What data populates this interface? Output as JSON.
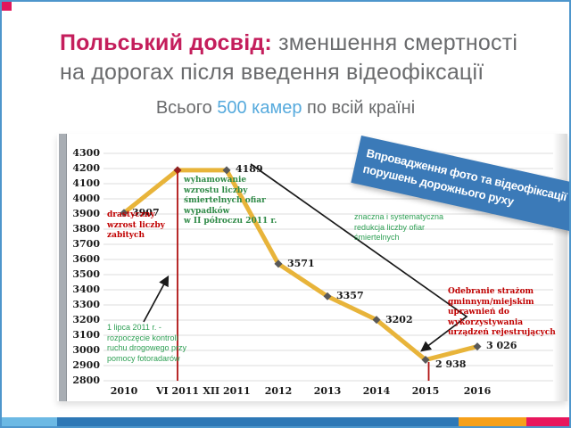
{
  "slide": {
    "title": {
      "accent": "Польський досвід:",
      "rest": " зменшення смертності",
      "line2": "на дорогах після введення відеофіксації"
    },
    "subtitle": {
      "prefix": "Всього ",
      "highlight": "500 камер",
      "suffix": " по всій країні"
    },
    "banner": {
      "text": "Впровадження фото та відеофіксації порушень дорожнього руху"
    }
  },
  "chart_data": {
    "type": "line",
    "title": "",
    "xlabel": "",
    "ylabel": "",
    "categories": [
      "2010",
      "VI 2011",
      "XII 2011",
      "2012",
      "2013",
      "2014",
      "2015",
      "2016"
    ],
    "values": [
      3907,
      4189,
      4189,
      3571,
      3357,
      3202,
      2938,
      3026
    ],
    "point_labels": [
      "3907",
      "",
      "4189",
      "3571",
      "3357",
      "3202",
      "2 938",
      "3 026"
    ],
    "ylim": [
      2800,
      4300
    ],
    "y_ticks": [
      4300,
      4200,
      4100,
      4000,
      3900,
      3800,
      3700,
      3600,
      3500,
      3400,
      3300,
      3200,
      3100,
      3000,
      2900,
      2800
    ],
    "grid": true,
    "legend": "none",
    "line_color": "#e8b43a",
    "marker_color": "#595959",
    "event_marker_color": "#8f2020",
    "event_point_index": 1,
    "annotations": {
      "drastyczny": "drastyczny\nwzrost liczby\nzabitych",
      "wyhamowanie": "wyhamowanie\nwzrostu liczby\nśmiertelnych ofiar\nwypadków\nw II półroczu 2011 r.",
      "lipca": "1 lipca 2011 r. -\nrozpoczęcie kontroli\nruchu drogowego przy\npomocy fotoradarów",
      "znaczna": "znaczna i systematyczna\nredukcja liczby ofiar\nśmiertelnych",
      "odebranie": "Odebranie strażom\ngminnym/miejskim\nuprawnień do\nwykorzystywania\nurządzeń rejestrujących"
    }
  },
  "colors": {
    "accent_crimson": "#c41e5c",
    "text_gray": "#6a6b6d",
    "highlight_blue": "#56aadd",
    "banner_blue": "#3b7ab8",
    "footer_lightblue": "#6cb9e4",
    "footer_blue": "#2e78b6",
    "footer_orange": "#f6a01a",
    "footer_pink": "#e8175d",
    "red_annotation": "#c00000",
    "green_annotation": "#2fa055",
    "event_line_red": "#b01212"
  }
}
